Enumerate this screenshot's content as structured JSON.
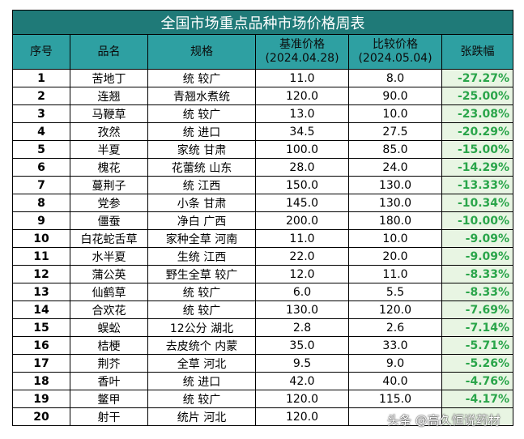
{
  "table": {
    "title": "全国市场重点品种市场价格周表",
    "headers": {
      "no": "序号",
      "name": "品名",
      "spec": "规格",
      "base_line1": "基准价格",
      "base_line2": "(2024.04.28)",
      "cmp_line1": "比较价格",
      "cmp_line2": "(2024.05.04)",
      "change": "张跌幅"
    },
    "rows": [
      {
        "no": "1",
        "name": "苦地丁",
        "spec": "统 较广",
        "base": "11.0",
        "cmp": "8.0",
        "change": "-27.27%"
      },
      {
        "no": "2",
        "name": "连翘",
        "spec": "青翘水煮统",
        "base": "120.0",
        "cmp": "90.0",
        "change": "-25.00%"
      },
      {
        "no": "3",
        "name": "马鞭草",
        "spec": "统 较广",
        "base": "13.0",
        "cmp": "10.0",
        "change": "-23.08%"
      },
      {
        "no": "4",
        "name": "孜然",
        "spec": "统 进口",
        "base": "34.5",
        "cmp": "27.5",
        "change": "-20.29%"
      },
      {
        "no": "5",
        "name": "半夏",
        "spec": "家统 甘肃",
        "base": "100.0",
        "cmp": "85.0",
        "change": "-15.00%"
      },
      {
        "no": "6",
        "name": "槐花",
        "spec": "花蕾统 山东",
        "base": "28.0",
        "cmp": "24.0",
        "change": "-14.29%"
      },
      {
        "no": "7",
        "name": "蔓荆子",
        "spec": "统 江西",
        "base": "150.0",
        "cmp": "130.0",
        "change": "-13.33%"
      },
      {
        "no": "8",
        "name": "党参",
        "spec": "小条 甘肃",
        "base": "145.0",
        "cmp": "130.0",
        "change": "-10.34%"
      },
      {
        "no": "9",
        "name": "僵蚕",
        "spec": "净白 广西",
        "base": "200.0",
        "cmp": "180.0",
        "change": "-10.00%"
      },
      {
        "no": "10",
        "name": "白花蛇舌草",
        "spec": "家种全草 河南",
        "base": "11.0",
        "cmp": "10.0",
        "change": "-9.09%"
      },
      {
        "no": "11",
        "name": "水半夏",
        "spec": "生统 江西",
        "base": "22.0",
        "cmp": "20.0",
        "change": "-9.09%"
      },
      {
        "no": "12",
        "name": "蒲公英",
        "spec": "野生全草 较广",
        "base": "12.0",
        "cmp": "11.0",
        "change": "-8.33%"
      },
      {
        "no": "13",
        "name": "仙鹤草",
        "spec": "统 较广",
        "base": "6.0",
        "cmp": "5.5",
        "change": "-8.33%"
      },
      {
        "no": "14",
        "name": "合欢花",
        "spec": "统 较广",
        "base": "130.0",
        "cmp": "120.0",
        "change": "-7.69%"
      },
      {
        "no": "15",
        "name": "蜈蚣",
        "spec": "12公分 湖北",
        "base": "2.8",
        "cmp": "2.6",
        "change": "-7.14%"
      },
      {
        "no": "16",
        "name": "桔梗",
        "spec": "去皮统个 内蒙",
        "base": "35.0",
        "cmp": "33.0",
        "change": "-5.71%"
      },
      {
        "no": "17",
        "name": "荆芥",
        "spec": "全草 河北",
        "base": "9.5",
        "cmp": "9.0",
        "change": "-5.26%"
      },
      {
        "no": "18",
        "name": "香叶",
        "spec": "统 进口",
        "base": "42.0",
        "cmp": "40.0",
        "change": "-4.76%"
      },
      {
        "no": "19",
        "name": "鳖甲",
        "spec": "统 较广",
        "base": "120.0",
        "cmp": "115.0",
        "change": "-4.17%"
      },
      {
        "no": "20",
        "name": "射干",
        "spec": "统片 河北",
        "base": "120.0",
        "cmp": "",
        "change": ""
      }
    ]
  },
  "watermark": "头条 @高久恒说药材",
  "colors": {
    "title_bg": "#1f7a78",
    "header_bg": "#2ea0a2",
    "change_bg": "#e8f5e3",
    "change_text": "#2aa54a"
  }
}
